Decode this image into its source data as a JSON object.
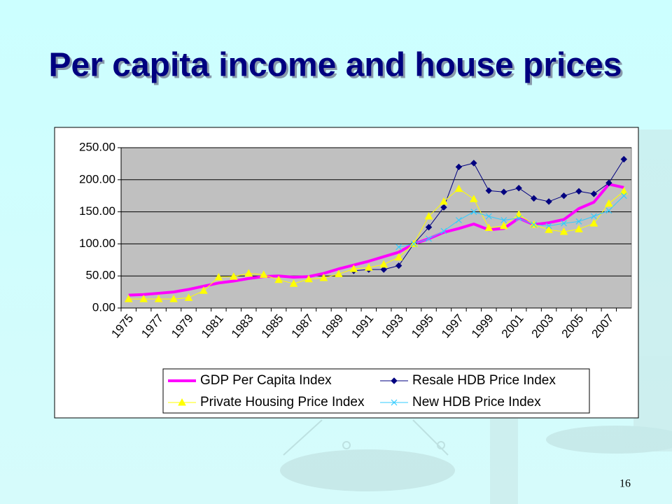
{
  "chart_data": {
    "type": "line",
    "title": "Per capita income and house prices",
    "page_number": "16",
    "categories": [
      "1975",
      null,
      "1977",
      null,
      "1979",
      null,
      "1981",
      null,
      "1983",
      null,
      "1985",
      null,
      "1987",
      null,
      "1989",
      null,
      "1991",
      null,
      "1993",
      null,
      "1995",
      null,
      "1997",
      null,
      "1999",
      null,
      "2001",
      null,
      "2003",
      null,
      "2005",
      null,
      "2007",
      null
    ],
    "ylim": [
      0,
      250
    ],
    "yticks": [
      {
        "value": 0,
        "label": "0.00"
      },
      {
        "value": 50,
        "label": "50.00"
      },
      {
        "value": 100,
        "label": "100.00"
      },
      {
        "value": 150,
        "label": "150.00"
      },
      {
        "value": 200,
        "label": "200.00"
      },
      {
        "value": 250,
        "label": "250.00"
      }
    ],
    "grid": true,
    "series": [
      {
        "name": "GDP Per Capita Index",
        "color": "#ff00ff",
        "marker": "none",
        "values": [
          20,
          21,
          23,
          25,
          29,
          34,
          39,
          42,
          46,
          49,
          50,
          48,
          49,
          54,
          61,
          67,
          73,
          80,
          87,
          100,
          108,
          118,
          124,
          131,
          122,
          124,
          140,
          130,
          133,
          138,
          155,
          165,
          193,
          188
        ]
      },
      {
        "name": "Resale HDB Price Index",
        "color": "#000080",
        "marker": "diamond",
        "values": [
          null,
          null,
          null,
          null,
          null,
          null,
          null,
          null,
          null,
          null,
          null,
          null,
          null,
          null,
          null,
          58,
          60,
          60,
          66,
          100,
          126,
          157,
          220,
          226,
          183,
          181,
          187,
          171,
          166,
          175,
          182,
          178,
          195,
          232
        ]
      },
      {
        "name": "Private Housing Price Index",
        "color": "#ffff00",
        "marker": "triangle",
        "values": [
          14,
          14,
          14,
          14,
          16,
          27,
          48,
          49,
          54,
          52,
          44,
          38,
          45,
          47,
          53,
          61,
          63,
          68,
          79,
          100,
          143,
          166,
          186,
          170,
          125,
          128,
          146,
          130,
          122,
          119,
          123,
          132,
          163,
          182
        ]
      },
      {
        "name": "New HDB Price Index",
        "color": "#33ccff",
        "marker": "x",
        "values": [
          null,
          null,
          null,
          null,
          null,
          null,
          null,
          null,
          null,
          null,
          null,
          null,
          null,
          null,
          null,
          null,
          null,
          null,
          95,
          100,
          108,
          120,
          137,
          150,
          143,
          137,
          140,
          130,
          128,
          132,
          135,
          143,
          152,
          175
        ]
      }
    ]
  }
}
